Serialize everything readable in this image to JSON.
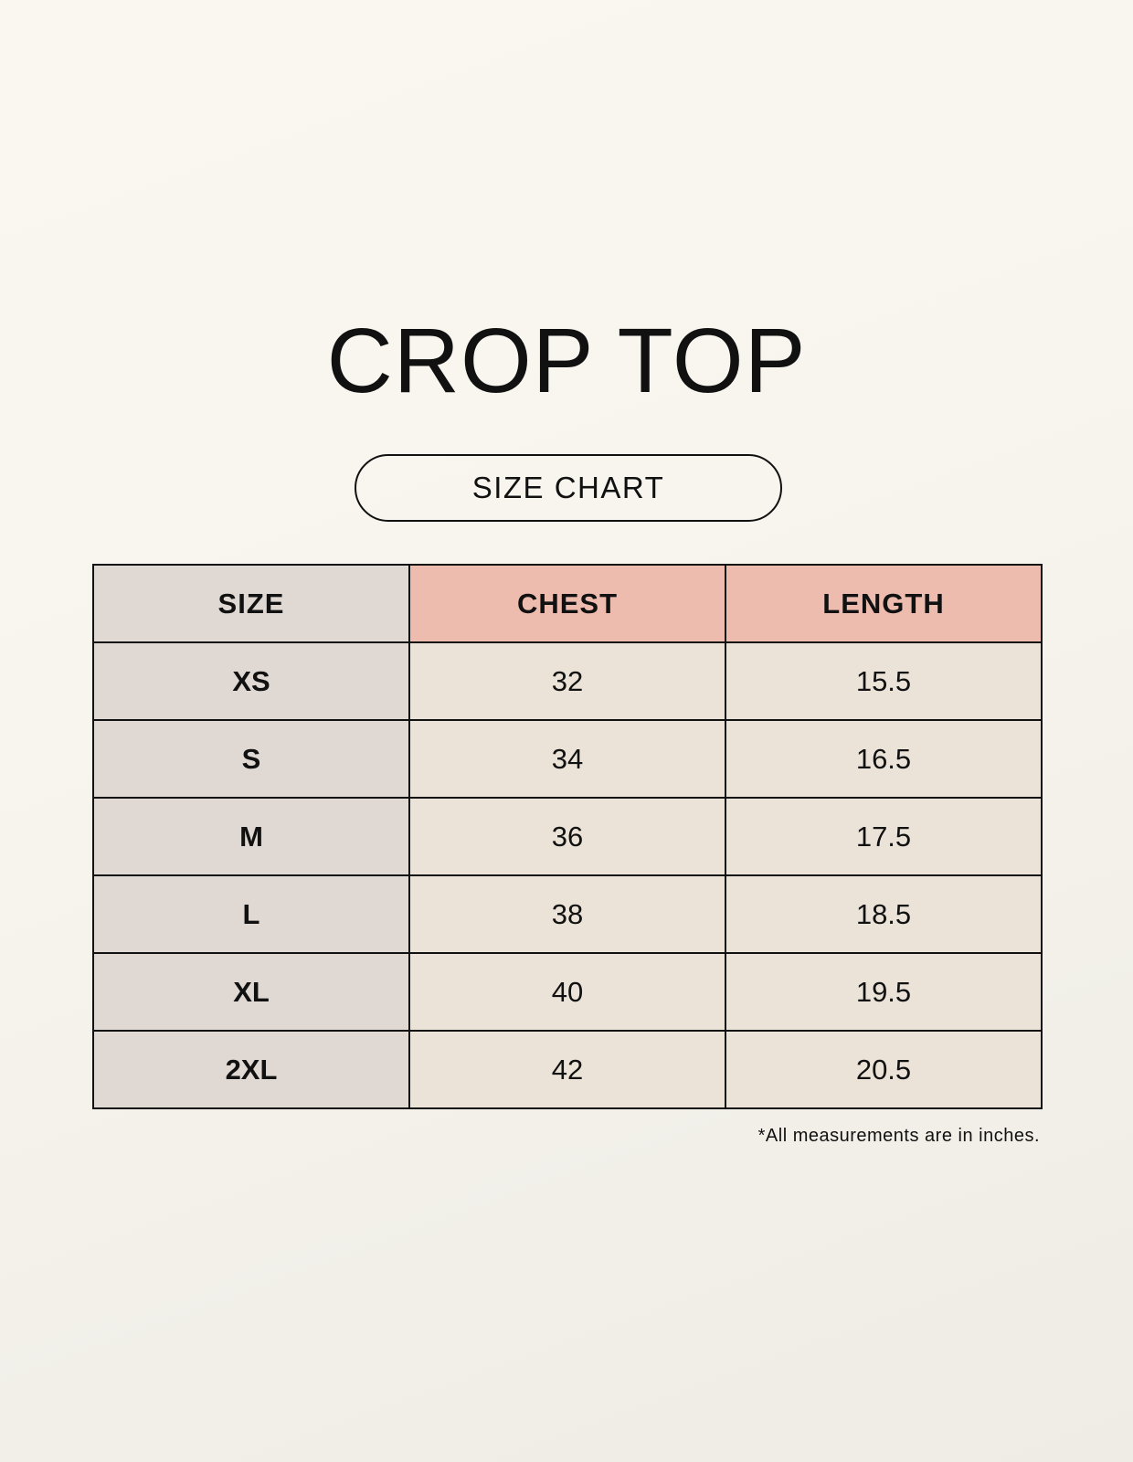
{
  "title": "CROP TOP",
  "subtitle": "SIZE CHART",
  "table": {
    "headers": [
      "SIZE",
      "CHEST",
      "LENGTH"
    ],
    "rows": [
      [
        "XS",
        "32",
        "15.5"
      ],
      [
        "S",
        "34",
        "16.5"
      ],
      [
        "M",
        "36",
        "17.5"
      ],
      [
        "L",
        "38",
        "18.5"
      ],
      [
        "XL",
        "40",
        "19.5"
      ],
      [
        "2XL",
        "42",
        "20.5"
      ]
    ]
  },
  "note": "*All measurements are in inches.",
  "colors": {
    "size_column": "#e0d9d3",
    "header_accent": "#eebcaf",
    "cell": "#ebe3d8"
  }
}
